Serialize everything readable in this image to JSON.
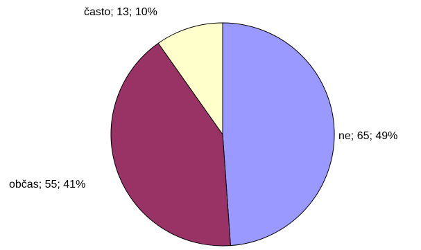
{
  "chart_data": {
    "type": "pie",
    "title": "",
    "legend": "none",
    "slices": [
      {
        "label": "ne",
        "value": 65,
        "percent": 49,
        "color": "#9999FF",
        "data_label": "ne; 65; 49%"
      },
      {
        "label": "občas",
        "value": 55,
        "percent": 41,
        "color": "#993366",
        "data_label": "občas; 55; 41%"
      },
      {
        "label": "často",
        "value": 13,
        "percent": 10,
        "color": "#FFFFCC",
        "data_label": "často; 13; 10%"
      }
    ],
    "start": "12 o'clock",
    "direction": "clockwise",
    "slice_border_color": "#000000"
  }
}
